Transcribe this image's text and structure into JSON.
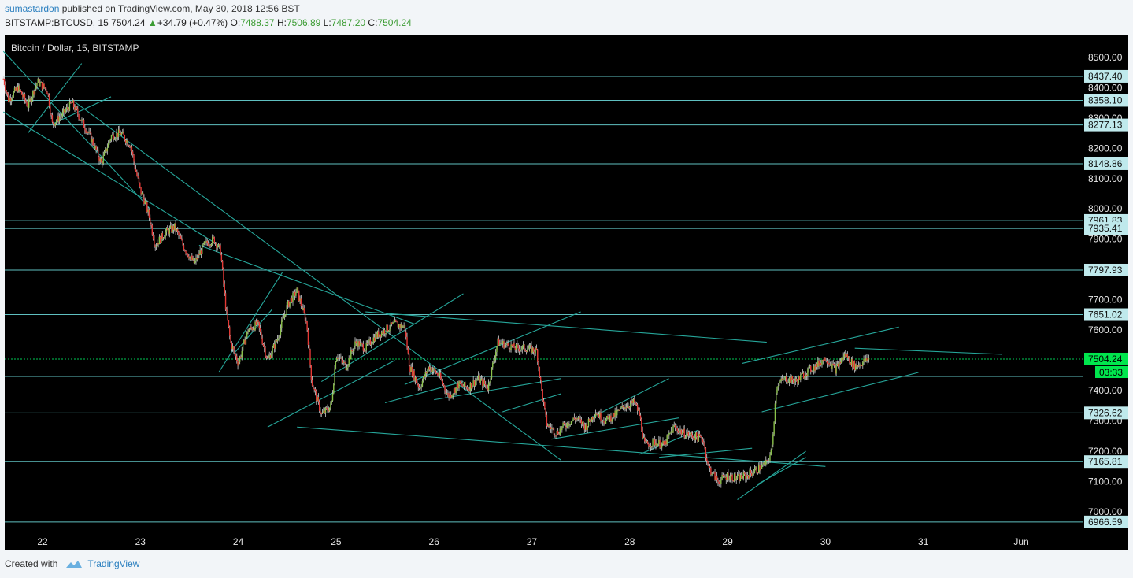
{
  "header": {
    "author": "sumastardon",
    "published_text": " published on TradingView.com, May 30, 2018 12:56 BST",
    "symbol": "BITSTAMP:BTCUSD, 15",
    "last": "7504.24",
    "change": "+34.79 (+0.47%)",
    "o_label": "O:",
    "o_value": "7488.37",
    "h_label": "H:",
    "h_value": "7506.89",
    "l_label": "L:",
    "l_value": "7487.20",
    "c_label": "C:",
    "c_value": "7504.24"
  },
  "footer": {
    "created_with": "Created with",
    "brand": "TradingView"
  },
  "colors": {
    "background": "#000000",
    "up": "#8bc34a",
    "down": "#e53935",
    "line": "#26a69a",
    "level": "#5fbfc0",
    "price_line": "#00c853"
  },
  "chart_data": {
    "type": "candlestick",
    "title": "Bitcoin / Dollar, 15, BITSTAMP",
    "x_ticks": [
      "22",
      "23",
      "24",
      "25",
      "26",
      "27",
      "28",
      "29",
      "30",
      "31",
      "Jun"
    ],
    "y_ticks": [
      "8500.00",
      "8400.00",
      "8300.00",
      "8200.00",
      "8100.00",
      "8000.00",
      "7900.00",
      "7800.00",
      "7700.00",
      "7600.00",
      "7500.00",
      "7400.00",
      "7300.00",
      "7200.00",
      "7100.00",
      "7000.00"
    ],
    "ylim": [
      6935,
      8575
    ],
    "current_price": "7504.24",
    "countdown": "03:33",
    "levels": [
      "8437.40",
      "8358.10",
      "8277.13",
      "8148.86",
      "7961.83",
      "7935.41",
      "7797.93",
      "7651.02",
      "7447.00",
      "7326.62",
      "7165.81",
      "6966.59"
    ],
    "levels_shown": [
      "8437.40",
      "8358.10",
      "8277.13",
      "8148.86",
      "7961.83",
      "7935.41",
      "7797.93",
      "7651.02",
      "7326.62",
      "7165.81",
      "6966.59"
    ],
    "price_path": [
      [
        21.6,
        8430
      ],
      [
        21.65,
        8360
      ],
      [
        21.75,
        8400
      ],
      [
        21.85,
        8340
      ],
      [
        21.95,
        8420
      ],
      [
        22.05,
        8390
      ],
      [
        22.1,
        8280
      ],
      [
        22.2,
        8310
      ],
      [
        22.3,
        8350
      ],
      [
        22.4,
        8290
      ],
      [
        22.5,
        8230
      ],
      [
        22.6,
        8150
      ],
      [
        22.7,
        8240
      ],
      [
        22.8,
        8250
      ],
      [
        22.9,
        8210
      ],
      [
        22.95,
        8130
      ],
      [
        23.0,
        8060
      ],
      [
        23.05,
        8020
      ],
      [
        23.1,
        7960
      ],
      [
        23.15,
        7880
      ],
      [
        23.25,
        7920
      ],
      [
        23.35,
        7940
      ],
      [
        23.45,
        7870
      ],
      [
        23.55,
        7820
      ],
      [
        23.65,
        7880
      ],
      [
        23.75,
        7900
      ],
      [
        23.82,
        7860
      ],
      [
        23.87,
        7680
      ],
      [
        23.92,
        7560
      ],
      [
        24.0,
        7490
      ],
      [
        24.1,
        7600
      ],
      [
        24.2,
        7620
      ],
      [
        24.3,
        7500
      ],
      [
        24.4,
        7570
      ],
      [
        24.5,
        7680
      ],
      [
        24.6,
        7730
      ],
      [
        24.7,
        7620
      ],
      [
        24.75,
        7430
      ],
      [
        24.85,
        7320
      ],
      [
        24.95,
        7350
      ],
      [
        25.0,
        7520
      ],
      [
        25.1,
        7480
      ],
      [
        25.2,
        7560
      ],
      [
        25.3,
        7540
      ],
      [
        25.4,
        7580
      ],
      [
        25.5,
        7600
      ],
      [
        25.6,
        7620
      ],
      [
        25.7,
        7610
      ],
      [
        25.75,
        7480
      ],
      [
        25.85,
        7410
      ],
      [
        25.95,
        7480
      ],
      [
        26.05,
        7450
      ],
      [
        26.15,
        7380
      ],
      [
        26.25,
        7420
      ],
      [
        26.35,
        7410
      ],
      [
        26.45,
        7440
      ],
      [
        26.55,
        7410
      ],
      [
        26.65,
        7560
      ],
      [
        26.75,
        7550
      ],
      [
        26.85,
        7540
      ],
      [
        26.95,
        7540
      ],
      [
        27.05,
        7530
      ],
      [
        27.1,
        7400
      ],
      [
        27.15,
        7290
      ],
      [
        27.25,
        7260
      ],
      [
        27.35,
        7290
      ],
      [
        27.45,
        7310
      ],
      [
        27.55,
        7280
      ],
      [
        27.65,
        7330
      ],
      [
        27.75,
        7300
      ],
      [
        27.85,
        7320
      ],
      [
        27.95,
        7350
      ],
      [
        28.05,
        7360
      ],
      [
        28.1,
        7320
      ],
      [
        28.15,
        7220
      ],
      [
        28.25,
        7230
      ],
      [
        28.35,
        7220
      ],
      [
        28.45,
        7280
      ],
      [
        28.55,
        7260
      ],
      [
        28.65,
        7250
      ],
      [
        28.75,
        7240
      ],
      [
        28.8,
        7150
      ],
      [
        28.9,
        7100
      ],
      [
        29.0,
        7120
      ],
      [
        29.1,
        7110
      ],
      [
        29.2,
        7120
      ],
      [
        29.3,
        7140
      ],
      [
        29.4,
        7160
      ],
      [
        29.45,
        7200
      ],
      [
        29.5,
        7420
      ],
      [
        29.6,
        7440
      ],
      [
        29.7,
        7430
      ],
      [
        29.8,
        7460
      ],
      [
        29.9,
        7480
      ],
      [
        30.0,
        7510
      ],
      [
        30.1,
        7470
      ],
      [
        30.2,
        7520
      ],
      [
        30.3,
        7480
      ],
      [
        30.45,
        7504.24
      ]
    ]
  }
}
